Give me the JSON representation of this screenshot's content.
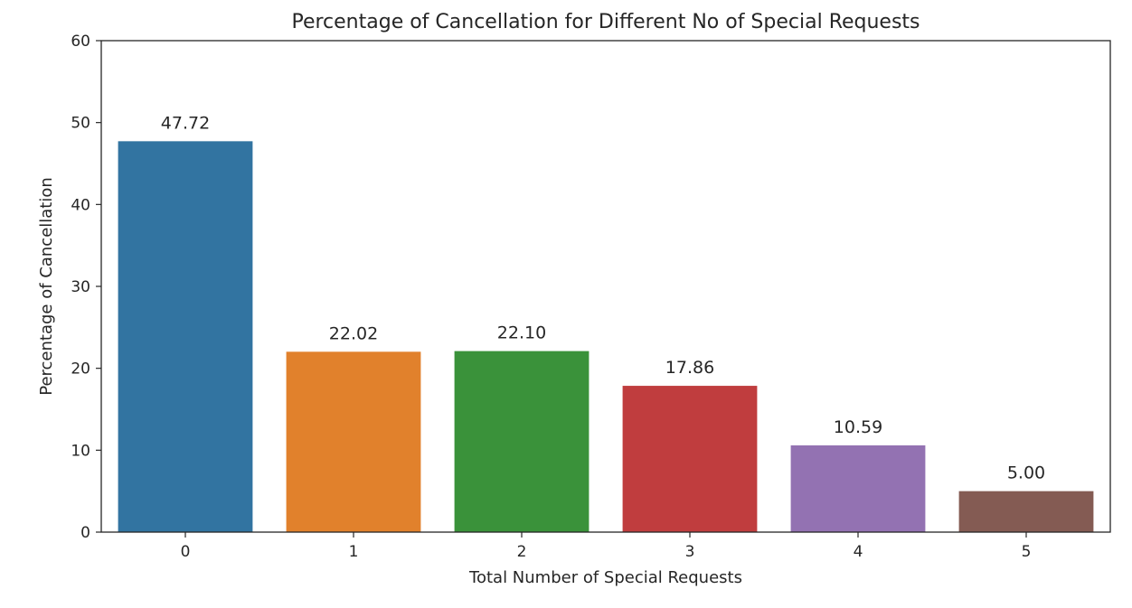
{
  "chart_data": {
    "type": "bar",
    "title": "Percentage of Cancellation for Different No of Special Requests",
    "xlabel": "Total Number of Special Requests",
    "ylabel": "Percentage of Cancellation",
    "categories": [
      "0",
      "1",
      "2",
      "3",
      "4",
      "5"
    ],
    "values": [
      47.72,
      22.02,
      22.1,
      17.86,
      10.59,
      5.0
    ],
    "data_labels": [
      "47.72",
      "22.02",
      "22.10",
      "17.86",
      "10.59",
      "5.00"
    ],
    "ylim": [
      0,
      60
    ],
    "yticks": [
      0,
      10,
      20,
      30,
      40,
      50,
      60
    ],
    "ytick_labels": [
      "0",
      "10",
      "20",
      "30",
      "40",
      "50",
      "60"
    ],
    "grid": false,
    "colors": [
      "#3274a1",
      "#e1812c",
      "#3a923a",
      "#c03d3e",
      "#9372b2",
      "#845b53"
    ]
  }
}
